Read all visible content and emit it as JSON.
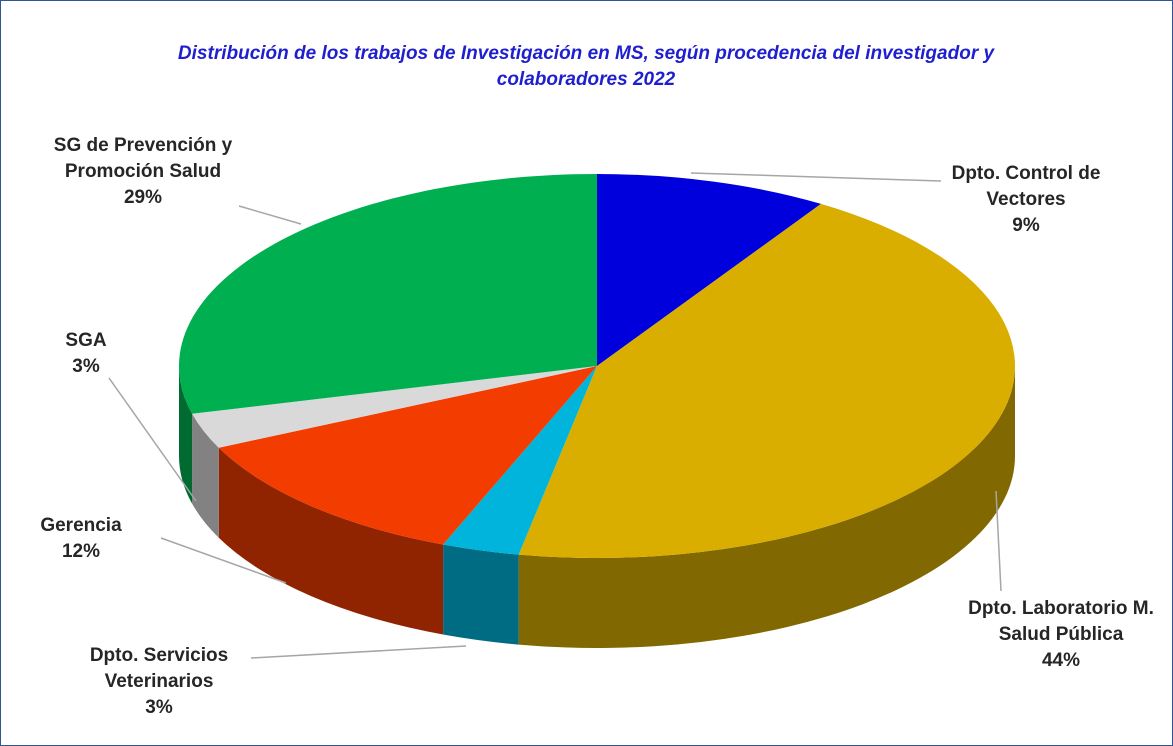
{
  "chart_data": {
    "type": "pie",
    "title": "Distribución  de los trabajos de Investigación en MS,  según procedencia del investigador y colaboradores 2022",
    "categories": [
      "Dpto. Control de Vectores",
      "Dpto. Laboratorio M. Salud Pública",
      "Dpto. Servicios Veterinarios",
      "Gerencia",
      "SGA",
      "SG de Prevención y Promoción Salud"
    ],
    "values": [
      9,
      44,
      3,
      12,
      3,
      29
    ],
    "value_labels": [
      "9%",
      "44%",
      "3%",
      "12%",
      "3%",
      "29%"
    ],
    "colors": [
      "#0000dd",
      "#d9ae00",
      "#00b4dc",
      "#f23c00",
      "#d9d9d9",
      "#00b050"
    ]
  }
}
